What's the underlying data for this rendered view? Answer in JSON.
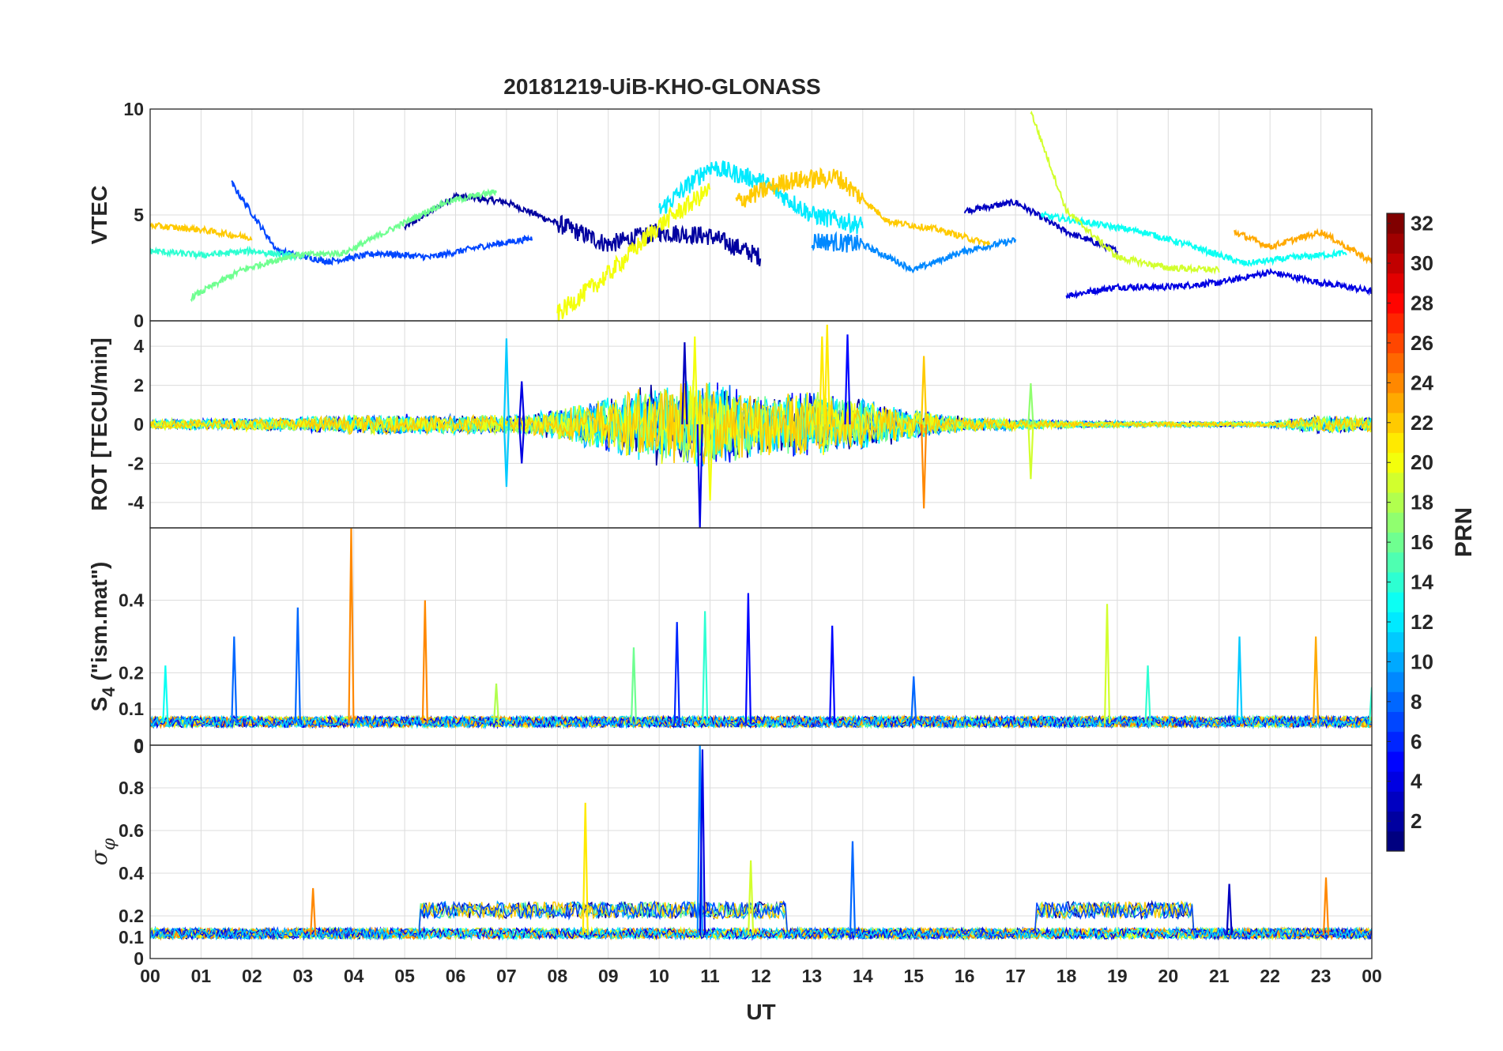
{
  "chart_data": {
    "type": "line",
    "title": "20181219-UiB-KHO-GLONASS",
    "xlabel": "UT",
    "x_tick_labels": [
      "00",
      "01",
      "02",
      "03",
      "04",
      "05",
      "06",
      "07",
      "08",
      "09",
      "10",
      "11",
      "12",
      "13",
      "14",
      "15",
      "16",
      "17",
      "18",
      "19",
      "20",
      "21",
      "22",
      "23",
      "00"
    ],
    "xlim_hours": [
      0,
      24
    ],
    "grid": true,
    "panels": [
      {
        "name": "vtec",
        "ylabel": "VTEC",
        "ylim": [
          0,
          10
        ],
        "yticks": [
          0,
          5,
          10
        ],
        "ytick_labels": [
          "0",
          "5",
          "10"
        ],
        "series": [
          {
            "prn": 2,
            "x": [
              5.0,
              6.0,
              7.0,
              8.0,
              9.0,
              10.0,
              11.0,
              12.0
            ],
            "y": [
              4.4,
              5.9,
              5.6,
              4.6,
              3.6,
              4.2,
              4.0,
              3.0
            ]
          },
          {
            "prn": 3,
            "x": [
              16.0,
              17.0,
              18.0,
              19.0
            ],
            "y": [
              5.2,
              5.6,
              4.2,
              3.3
            ]
          },
          {
            "prn": 4,
            "x": [
              18.0,
              19.0,
              20.0,
              21.0,
              22.0,
              23.0,
              24.0
            ],
            "y": [
              1.2,
              1.6,
              1.6,
              1.8,
              2.3,
              1.8,
              1.4
            ]
          },
          {
            "prn": 7,
            "x": [
              1.6,
              2.5,
              3.5,
              4.5,
              5.5,
              6.5,
              7.5
            ],
            "y": [
              6.5,
              3.3,
              2.8,
              3.2,
              3.0,
              3.5,
              3.9
            ]
          },
          {
            "prn": 9,
            "x": [
              13.0,
              14.0,
              15.0,
              16.0,
              17.0
            ],
            "y": [
              3.8,
              3.6,
              2.4,
              3.3,
              3.8
            ]
          },
          {
            "prn": 12,
            "x": [
              10.0,
              11.0,
              12.0,
              13.0,
              14.0
            ],
            "y": [
              5.2,
              7.3,
              6.6,
              5.0,
              4.5
            ]
          },
          {
            "prn": 13,
            "x": [
              17.5,
              18.5,
              19.5,
              20.5,
              21.5,
              22.5,
              23.5
            ],
            "y": [
              5.0,
              4.6,
              4.2,
              3.5,
              2.7,
              3.0,
              3.2
            ]
          },
          {
            "prn": 14,
            "x": [
              0.0,
              1.0,
              2.0,
              3.0
            ],
            "y": [
              3.3,
              3.1,
              3.3,
              3.0
            ]
          },
          {
            "prn": 16,
            "x": [
              0.8,
              1.8,
              2.8,
              3.8,
              4.8,
              5.8,
              6.8
            ],
            "y": [
              1.1,
              2.4,
              3.1,
              3.2,
              4.4,
              5.6,
              6.1
            ]
          },
          {
            "prn": 19,
            "x": [
              17.3,
              18.0,
              19.0,
              20.0,
              21.0
            ],
            "y": [
              9.9,
              5.2,
              3.0,
              2.5,
              2.4
            ]
          },
          {
            "prn": 20,
            "x": [
              8.0,
              9.0,
              10.0,
              11.0
            ],
            "y": [
              0.3,
              2.2,
              4.5,
              6.2
            ]
          },
          {
            "prn": 22,
            "x": [
              11.5,
              12.5,
              13.5,
              14.5,
              15.5,
              16.5
            ],
            "y": [
              5.6,
              6.6,
              6.8,
              4.7,
              4.3,
              3.6
            ]
          },
          {
            "prn": 23,
            "x": [
              21.3,
              22.0,
              23.0,
              24.0
            ],
            "y": [
              4.2,
              3.5,
              4.2,
              2.8
            ]
          },
          {
            "prn": 22,
            "x": [
              0.0,
              1.0,
              2.0
            ],
            "y": [
              4.5,
              4.3,
              3.9
            ]
          }
        ]
      },
      {
        "name": "rot",
        "ylabel": "ROT [TECU/min]",
        "ylim": [
          -5.3,
          5.3
        ],
        "yticks": [
          -4,
          -2,
          0,
          2,
          4
        ],
        "ytick_labels": [
          "-4",
          "-2",
          "0",
          "2",
          "4"
        ],
        "envelope": {
          "x": [
            0,
            2,
            4,
            5,
            7,
            8,
            9,
            10,
            11,
            12,
            13,
            14,
            15,
            16,
            17,
            18,
            20,
            22,
            23,
            24
          ],
          "amplitude": [
            0.25,
            0.35,
            0.5,
            0.55,
            0.5,
            0.8,
            1.5,
            2.3,
            2.4,
            1.7,
            1.8,
            1.4,
            0.8,
            0.4,
            0.3,
            0.2,
            0.15,
            0.15,
            0.5,
            0.4
          ]
        },
        "spikes": [
          {
            "prn": 11,
            "x": 7.0,
            "y": 4.4
          },
          {
            "prn": 11,
            "x": 7.0,
            "y": -3.2
          },
          {
            "prn": 4,
            "x": 7.3,
            "y": 2.2
          },
          {
            "prn": 4,
            "x": 7.3,
            "y": -2.0
          },
          {
            "prn": 3,
            "x": 10.5,
            "y": 4.2
          },
          {
            "prn": 20,
            "x": 10.7,
            "y": 4.5
          },
          {
            "prn": 4,
            "x": 10.8,
            "y": -5.3
          },
          {
            "prn": 20,
            "x": 11.0,
            "y": -3.9
          },
          {
            "prn": 21,
            "x": 13.2,
            "y": 4.5
          },
          {
            "prn": 21,
            "x": 13.3,
            "y": 5.1
          },
          {
            "prn": 5,
            "x": 13.7,
            "y": 4.6
          },
          {
            "prn": 22,
            "x": 15.2,
            "y": 3.5
          },
          {
            "prn": 24,
            "x": 15.2,
            "y": -4.3
          },
          {
            "prn": 19,
            "x": 17.3,
            "y": -2.8
          },
          {
            "prn": 17,
            "x": 17.3,
            "y": 2.1
          }
        ]
      },
      {
        "name": "s4",
        "ylabel": "S4 (\"ism.mat\")",
        "ylabel_main": "S",
        "ylabel_sub": "4",
        "ylabel_suffix": " (\"ism.mat\")",
        "ylim": [
          0,
          0.6
        ],
        "yticks": [
          0,
          0.1,
          0.2,
          0.4
        ],
        "ytick_labels": [
          "0",
          "0.1",
          "0.2",
          "0.4"
        ],
        "baseline": 0.06,
        "spikes": [
          {
            "prn": 13,
            "x": 0.3,
            "y": 0.22
          },
          {
            "prn": 8,
            "x": 1.65,
            "y": 0.3
          },
          {
            "prn": 8,
            "x": 2.9,
            "y": 0.38
          },
          {
            "prn": 24,
            "x": 3.95,
            "y": 0.6
          },
          {
            "prn": 24,
            "x": 5.4,
            "y": 0.4
          },
          {
            "prn": 18,
            "x": 6.8,
            "y": 0.17
          },
          {
            "prn": 16,
            "x": 9.5,
            "y": 0.27
          },
          {
            "prn": 6,
            "x": 10.35,
            "y": 0.34
          },
          {
            "prn": 14,
            "x": 10.9,
            "y": 0.37
          },
          {
            "prn": 5,
            "x": 11.75,
            "y": 0.42
          },
          {
            "prn": 5,
            "x": 13.4,
            "y": 0.33
          },
          {
            "prn": 8,
            "x": 15.0,
            "y": 0.19
          },
          {
            "prn": 19,
            "x": 18.8,
            "y": 0.39
          },
          {
            "prn": 14,
            "x": 19.6,
            "y": 0.22
          },
          {
            "prn": 11,
            "x": 21.4,
            "y": 0.3
          },
          {
            "prn": 23,
            "x": 22.9,
            "y": 0.3
          },
          {
            "prn": 14,
            "x": 24.0,
            "y": 0.16
          }
        ]
      },
      {
        "name": "sigma_phi",
        "ylabel": "σφ",
        "ylabel_main": "σ",
        "ylabel_sub": "φ",
        "ylim": [
          0,
          1.0
        ],
        "yticks": [
          0,
          0.1,
          0.2,
          0.4,
          0.6,
          0.8
        ],
        "ytick_labels": [
          "0",
          "0.1",
          "0.2",
          "0.4",
          "0.6",
          "0.8"
        ],
        "top_label_left": "0",
        "baseline": 0.11,
        "spikes": [
          {
            "prn": 21,
            "x": 8.55,
            "y": 0.73
          },
          {
            "prn": 9,
            "x": 10.8,
            "y": 1.0
          },
          {
            "prn": 4,
            "x": 10.85,
            "y": 0.98
          },
          {
            "prn": 19,
            "x": 11.8,
            "y": 0.46
          },
          {
            "prn": 8,
            "x": 13.8,
            "y": 0.55
          },
          {
            "prn": 24,
            "x": 3.2,
            "y": 0.33
          },
          {
            "prn": 24,
            "x": 23.1,
            "y": 0.38
          },
          {
            "prn": 3,
            "x": 21.2,
            "y": 0.35
          }
        ],
        "elevated_regions": [
          {
            "x0": 5.3,
            "x1": 12.5,
            "level": 0.24
          },
          {
            "x0": 17.4,
            "x1": 20.5,
            "level": 0.24
          }
        ]
      }
    ],
    "colorbar": {
      "label": "PRN",
      "range": [
        1,
        32
      ],
      "ticks": [
        2,
        4,
        6,
        8,
        10,
        12,
        14,
        16,
        18,
        20,
        22,
        24,
        26,
        28,
        30,
        32
      ],
      "tick_labels": [
        "2",
        "4",
        "6",
        "8",
        "10",
        "12",
        "14",
        "16",
        "18",
        "20",
        "22",
        "24",
        "26",
        "28",
        "30",
        "32"
      ],
      "colormap": "jet"
    }
  }
}
